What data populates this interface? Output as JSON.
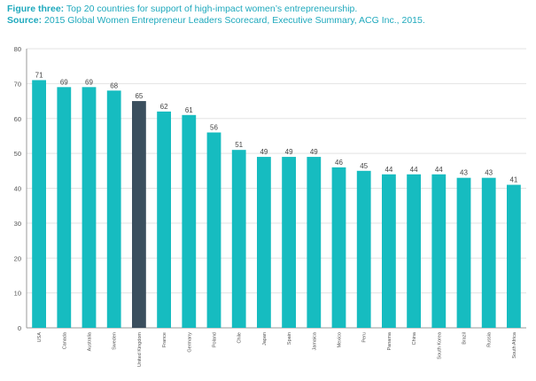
{
  "caption": {
    "figure_label": "Figure three:",
    "figure_text": " Top 20 countries for support of high-impact women’s entrepreneurship.",
    "source_label": "Source:",
    "source_text": " 2015 Global Women Entrepreneur Leaders Scorecard, Executive Summary, ACG Inc., 2015."
  },
  "chart_data": {
    "type": "bar",
    "title": "",
    "xlabel": "",
    "ylabel": "",
    "ylim": [
      0,
      80
    ],
    "yticks": [
      0,
      10,
      20,
      30,
      40,
      50,
      60,
      70,
      80
    ],
    "grid": true,
    "categories": [
      "USA",
      "Canada",
      "Australia",
      "Sweden",
      "United Kingdom",
      "France",
      "Germany",
      "Poland",
      "Chile",
      "Japan",
      "Spain",
      "Jamaica",
      "Mexico",
      "Peru",
      "Panama",
      "China",
      "South Korea",
      "Brazil",
      "Russia",
      "South Africa"
    ],
    "values": [
      71,
      69,
      69,
      68,
      65,
      62,
      61,
      56,
      51,
      49,
      49,
      49,
      46,
      45,
      44,
      44,
      44,
      43,
      43,
      41
    ],
    "highlight_category": "United Kingdom",
    "colors": {
      "bar": "#16bcc0",
      "highlight": "#3b4f5e",
      "grid": "#e3e3e3",
      "axis": "#9a9a9a",
      "caption": "#1fa9bd"
    }
  }
}
